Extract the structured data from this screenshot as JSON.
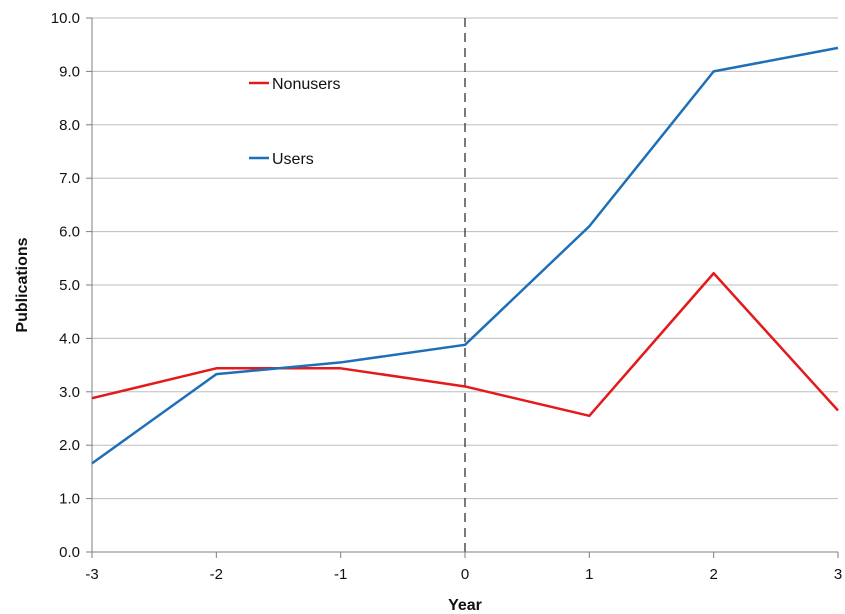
{
  "chart_data": {
    "type": "line",
    "x": [
      -3,
      -2,
      -1,
      0,
      1,
      2,
      3
    ],
    "xlabel": "Year",
    "ylabel": "Publications",
    "ylim": [
      0,
      10
    ],
    "xlim": [
      -3,
      3
    ],
    "y_ticks": [
      "0.0",
      "1.0",
      "2.0",
      "3.0",
      "4.0",
      "5.0",
      "6.0",
      "7.0",
      "8.0",
      "9.0",
      "10.0"
    ],
    "x_ticks": [
      "-3",
      "-2",
      "-1",
      "0",
      "1",
      "2",
      "3"
    ],
    "grid": "horizontal",
    "reference_line": {
      "x": 0,
      "style": "dashed",
      "color": "#333333"
    },
    "legend_placement": "upper-left (inside)",
    "series": [
      {
        "name": "Nonusers",
        "color": "#e31a1c",
        "values": [
          2.88,
          3.44,
          3.44,
          3.1,
          2.55,
          5.22,
          2.65
        ]
      },
      {
        "name": "Users",
        "color": "#1f6fb8",
        "values": [
          1.66,
          3.33,
          3.55,
          3.88,
          6.1,
          9.0,
          9.44
        ]
      }
    ]
  }
}
